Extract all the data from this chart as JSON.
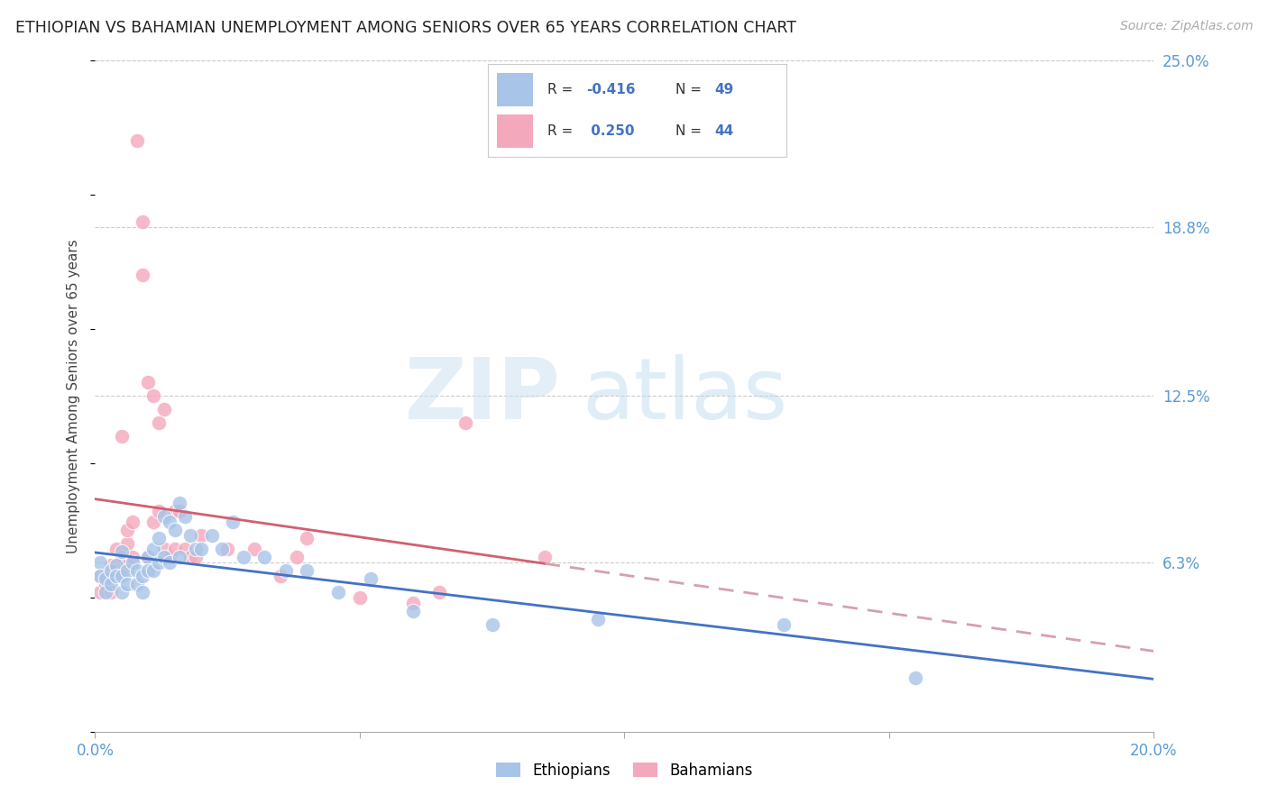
{
  "title": "ETHIOPIAN VS BAHAMIAN UNEMPLOYMENT AMONG SENIORS OVER 65 YEARS CORRELATION CHART",
  "source_text": "Source: ZipAtlas.com",
  "ylabel": "Unemployment Among Seniors over 65 years",
  "xlim": [
    0.0,
    0.2
  ],
  "ylim": [
    0.0,
    0.25
  ],
  "ytick_labels_right": [
    "6.3%",
    "12.5%",
    "18.8%",
    "25.0%"
  ],
  "ytick_vals_right": [
    0.063,
    0.125,
    0.188,
    0.25
  ],
  "legend_blue_r": "R = -0.416",
  "legend_blue_n": "N = 49",
  "legend_pink_r": "R =  0.250",
  "legend_pink_n": "N = 44",
  "ethiopian_color": "#a8c4e8",
  "bahamian_color": "#f4a8bc",
  "trend_blue_color": "#4472c4",
  "trend_pink_solid_color": "#d06070",
  "trend_pink_dash_color": "#d4a0b0",
  "ethiopians_x": [
    0.001,
    0.001,
    0.002,
    0.002,
    0.003,
    0.003,
    0.004,
    0.004,
    0.005,
    0.005,
    0.005,
    0.006,
    0.006,
    0.007,
    0.008,
    0.008,
    0.009,
    0.009,
    0.01,
    0.01,
    0.011,
    0.011,
    0.012,
    0.012,
    0.013,
    0.013,
    0.014,
    0.014,
    0.015,
    0.016,
    0.016,
    0.017,
    0.018,
    0.019,
    0.02,
    0.022,
    0.024,
    0.026,
    0.028,
    0.032,
    0.036,
    0.04,
    0.046,
    0.052,
    0.06,
    0.075,
    0.095,
    0.13,
    0.155
  ],
  "ethiopians_y": [
    0.063,
    0.058,
    0.057,
    0.052,
    0.06,
    0.055,
    0.062,
    0.058,
    0.067,
    0.058,
    0.052,
    0.06,
    0.055,
    0.063,
    0.06,
    0.055,
    0.058,
    0.052,
    0.065,
    0.06,
    0.068,
    0.06,
    0.072,
    0.063,
    0.08,
    0.065,
    0.078,
    0.063,
    0.075,
    0.085,
    0.065,
    0.08,
    0.073,
    0.068,
    0.068,
    0.073,
    0.068,
    0.078,
    0.065,
    0.065,
    0.06,
    0.06,
    0.052,
    0.057,
    0.045,
    0.04,
    0.042,
    0.04,
    0.02
  ],
  "bahamians_x": [
    0.001,
    0.001,
    0.002,
    0.002,
    0.003,
    0.003,
    0.004,
    0.004,
    0.005,
    0.005,
    0.006,
    0.006,
    0.006,
    0.007,
    0.007,
    0.008,
    0.009,
    0.009,
    0.01,
    0.01,
    0.011,
    0.011,
    0.012,
    0.012,
    0.013,
    0.013,
    0.014,
    0.015,
    0.015,
    0.016,
    0.017,
    0.018,
    0.019,
    0.02,
    0.025,
    0.03,
    0.035,
    0.038,
    0.04,
    0.05,
    0.06,
    0.065,
    0.07,
    0.085
  ],
  "bahamians_y": [
    0.058,
    0.052,
    0.058,
    0.055,
    0.062,
    0.052,
    0.068,
    0.06,
    0.065,
    0.11,
    0.07,
    0.062,
    0.075,
    0.078,
    0.065,
    0.22,
    0.17,
    0.19,
    0.065,
    0.13,
    0.125,
    0.078,
    0.082,
    0.115,
    0.068,
    0.12,
    0.065,
    0.082,
    0.068,
    0.082,
    0.068,
    0.065,
    0.065,
    0.073,
    0.068,
    0.068,
    0.058,
    0.065,
    0.072,
    0.05,
    0.048,
    0.052,
    0.115,
    0.065
  ]
}
